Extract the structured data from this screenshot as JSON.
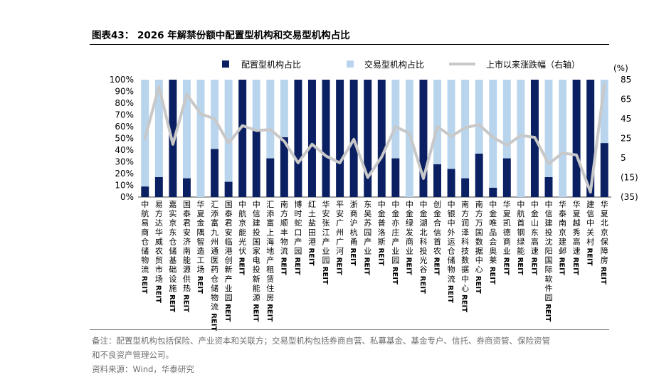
{
  "title": "图表43： 2026 年解禁份额中配置型机构和交易型机构占比",
  "notes": {
    "line1": "备注：配置型机构包括保险、产业资本和关联方；交易型机构包括券商自营、私募基金、基金专户、信托、券商资管、保险资管",
    "line2": "和不良资产管理公司。",
    "source": "资料来源：Wind，华泰研究"
  },
  "colors": {
    "config": "#0b2063",
    "trade": "#b9d5ee",
    "line": "#c8c8c8"
  },
  "chart_data": {
    "type": "bar",
    "stacked": true,
    "categories": [
      "中航易商仓储物流REIT",
      "易方达华威农贸市场REIT",
      "嘉实京东仓储基础设施REIT",
      "国泰君安济南能源供热REIT",
      "华夏金隅智造工场REIT",
      "汇添富九州通医药仓储物流REIT",
      "国泰君安临港创新产业园REIT",
      "中航京能光伏REIT",
      "中信建投国家电投新能源REIT",
      "汇添富上海地产租赁住房REIT",
      "南方顺丰物流REIT",
      "博时蛇口产园REIT",
      "红土盐田港REIT",
      "华安张江产业园REIT",
      "平安广州广河REIT",
      "浙商沪杭甬REIT",
      "东吴苏园产业REIT",
      "中金普洛斯REIT",
      "中金亦庄产业园REIT",
      "中金绿发商业REIT",
      "中金湖北科投光谷REIT",
      "创金合信首农REIT",
      "中银中外运仓储物流REIT",
      "南方润泽科技数据中心REIT",
      "南方万国数据中心REIT",
      "中金唯品会奥莱REIT",
      "华夏凯德商业REIT",
      "中航首钢绿能REIT",
      "中金山东高速REIT",
      "中信建投沈阳国际软件园REIT",
      "华泰南京建邺REIT",
      "华夏越秀高速REIT",
      "建信中关村REIT",
      "华夏北京保障房REIT"
    ],
    "series": [
      {
        "name": "配置型机构占比",
        "kind": "bar",
        "axis": "left",
        "values": [
          9,
          17,
          100,
          16,
          0,
          41,
          13,
          100,
          57,
          33,
          51,
          100,
          100,
          100,
          100,
          100,
          100,
          100,
          33,
          0,
          100,
          28,
          24,
          16,
          37,
          8,
          33,
          0,
          100,
          17,
          0,
          100,
          100,
          46
        ]
      },
      {
        "name": "交易型机构占比",
        "kind": "bar",
        "axis": "left",
        "values": [
          91,
          83,
          0,
          84,
          100,
          59,
          87,
          0,
          43,
          67,
          49,
          0,
          0,
          0,
          0,
          0,
          0,
          0,
          67,
          100,
          0,
          72,
          76,
          84,
          63,
          92,
          67,
          100,
          0,
          83,
          100,
          0,
          0,
          54
        ]
      },
      {
        "name": "上市以来涨跌幅（右轴）",
        "kind": "line",
        "axis": "right",
        "values": [
          25,
          78,
          19,
          70,
          50,
          45,
          20,
          38,
          33,
          34,
          22,
          0,
          19,
          7,
          0,
          24,
          -15,
          6,
          37,
          30,
          -16,
          37,
          27,
          36,
          39,
          26,
          18,
          28,
          26,
          -1,
          10,
          8,
          -30,
          80
        ]
      }
    ],
    "y_left": {
      "ticks": [
        "0%",
        "10%",
        "20%",
        "30%",
        "40%",
        "50%",
        "60%",
        "70%",
        "80%",
        "90%",
        "100%"
      ],
      "lim": [
        0,
        100
      ]
    },
    "y_right": {
      "unit": "(%)",
      "ticks": [
        "(35)",
        "(15)",
        "5",
        "25",
        "45",
        "65",
        "85"
      ],
      "lim": [
        -35,
        85
      ]
    },
    "legend": "top"
  }
}
